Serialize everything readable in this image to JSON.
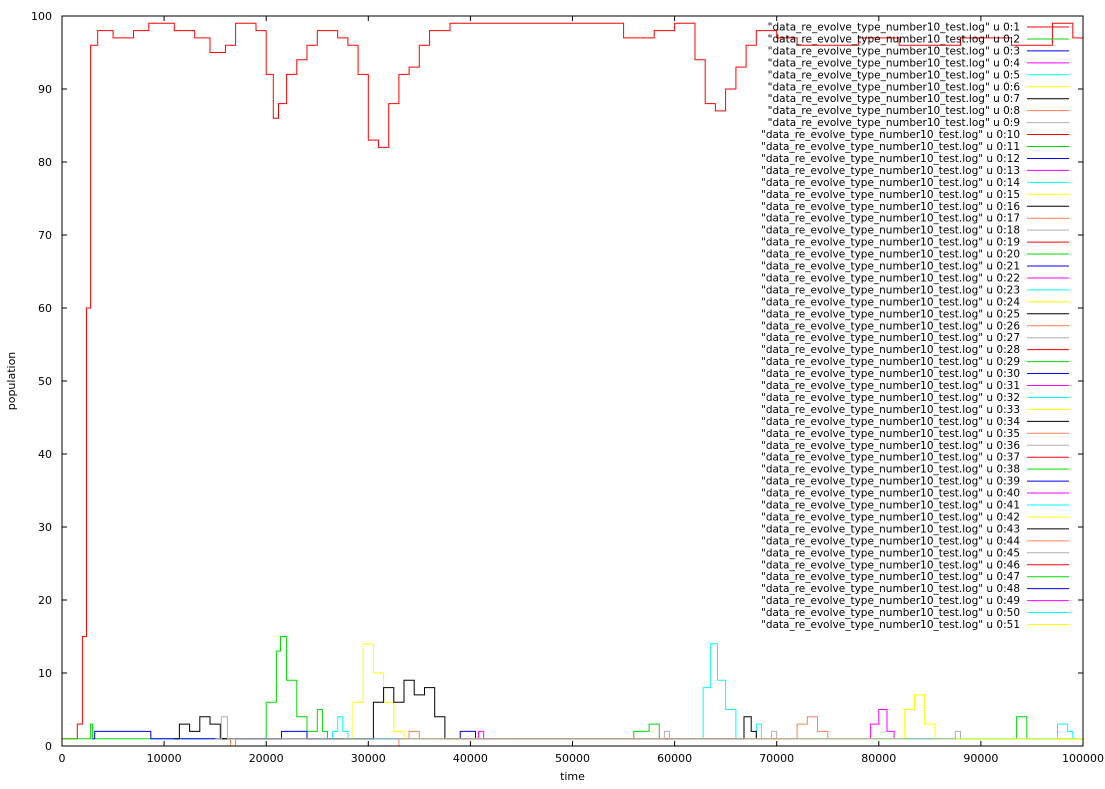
{
  "chart_data": {
    "type": "line",
    "xlabel": "time",
    "ylabel": "population",
    "xlim": [
      0,
      100000
    ],
    "ylim": [
      0,
      100
    ],
    "x_ticks": [
      0,
      10000,
      20000,
      30000,
      40000,
      50000,
      60000,
      70000,
      80000,
      90000,
      100000
    ],
    "y_ticks": [
      0,
      10,
      20,
      30,
      40,
      50,
      60,
      70,
      80,
      90,
      100
    ],
    "grid": false,
    "legend_position": "top-right",
    "series": [
      {
        "name": "\"data_re_evolve_type_number10_test.log\" u 0:1",
        "color": "#ff0000",
        "points": [
          [
            0,
            1
          ],
          [
            800,
            1
          ],
          [
            1500,
            3
          ],
          [
            2000,
            15
          ],
          [
            2400,
            60
          ],
          [
            2800,
            96
          ],
          [
            3500,
            98
          ],
          [
            5000,
            97
          ],
          [
            7000,
            98
          ],
          [
            8500,
            99
          ],
          [
            11000,
            98
          ],
          [
            13000,
            97
          ],
          [
            14500,
            95
          ],
          [
            16000,
            96
          ],
          [
            17000,
            99
          ],
          [
            19000,
            98
          ],
          [
            20000,
            92
          ],
          [
            20700,
            86
          ],
          [
            21200,
            88
          ],
          [
            22000,
            92
          ],
          [
            23000,
            94
          ],
          [
            24000,
            96
          ],
          [
            25000,
            98
          ],
          [
            27000,
            97
          ],
          [
            28000,
            96
          ],
          [
            29000,
            92
          ],
          [
            30000,
            83
          ],
          [
            31000,
            82
          ],
          [
            32000,
            88
          ],
          [
            33000,
            92
          ],
          [
            34000,
            93
          ],
          [
            35000,
            96
          ],
          [
            36000,
            98
          ],
          [
            38000,
            99
          ],
          [
            44000,
            99
          ],
          [
            52000,
            99
          ],
          [
            55000,
            97
          ],
          [
            58000,
            98
          ],
          [
            60000,
            99
          ],
          [
            62000,
            94
          ],
          [
            63000,
            88
          ],
          [
            64000,
            87
          ],
          [
            65000,
            90
          ],
          [
            66000,
            93
          ],
          [
            67000,
            96
          ],
          [
            68000,
            98
          ],
          [
            70000,
            97
          ],
          [
            72000,
            96
          ],
          [
            75000,
            96
          ],
          [
            78000,
            97
          ],
          [
            82000,
            96
          ],
          [
            85000,
            96
          ],
          [
            88000,
            97
          ],
          [
            93000,
            96
          ],
          [
            97000,
            99
          ],
          [
            99000,
            97
          ],
          [
            100000,
            96
          ]
        ]
      },
      {
        "name": "\"data_re_evolve_type_number10_test.log\" u 0:2",
        "color": "#00dd00",
        "points": [
          [
            0,
            1
          ],
          [
            2600,
            1
          ],
          [
            2800,
            3
          ],
          [
            3000,
            1
          ],
          [
            19000,
            1
          ],
          [
            20000,
            6
          ],
          [
            21000,
            13
          ],
          [
            21400,
            15
          ],
          [
            22000,
            9
          ],
          [
            23000,
            4
          ],
          [
            24000,
            2
          ],
          [
            25000,
            5
          ],
          [
            25500,
            2
          ],
          [
            26000,
            1
          ],
          [
            55000,
            1
          ],
          [
            56000,
            2
          ],
          [
            57500,
            3
          ],
          [
            58500,
            1
          ],
          [
            92000,
            1
          ],
          [
            93500,
            4
          ],
          [
            94500,
            1
          ],
          [
            100000,
            1
          ]
        ]
      },
      {
        "name": "\"data_re_evolve_type_number10_test.log\" u 0:3",
        "color": "#0000ff",
        "points": [
          [
            3000,
            1
          ],
          [
            3200,
            2
          ],
          [
            8500,
            2
          ],
          [
            8700,
            1
          ],
          [
            21000,
            1
          ],
          [
            21500,
            2
          ],
          [
            23500,
            2
          ],
          [
            24000,
            1
          ],
          [
            38500,
            1
          ],
          [
            39000,
            2
          ],
          [
            40000,
            2
          ],
          [
            40500,
            1
          ]
        ]
      },
      {
        "name": "\"data_re_evolve_type_number10_test.log\" u 0:4",
        "color": "#ff00ff",
        "points": [
          [
            40000,
            1
          ],
          [
            40800,
            2
          ],
          [
            41300,
            1
          ],
          [
            78000,
            1
          ],
          [
            79200,
            3
          ],
          [
            80000,
            5
          ],
          [
            80800,
            2
          ],
          [
            81500,
            1
          ]
        ]
      },
      {
        "name": "\"data_re_evolve_type_number10_test.log\" u 0:5",
        "color": "#00ffff",
        "points": [
          [
            25000,
            1
          ],
          [
            26500,
            2
          ],
          [
            27000,
            4
          ],
          [
            27500,
            2
          ],
          [
            28000,
            1
          ],
          [
            62000,
            1
          ],
          [
            62800,
            8
          ],
          [
            63500,
            14
          ],
          [
            64200,
            9
          ],
          [
            65000,
            5
          ],
          [
            66000,
            1
          ],
          [
            67500,
            1
          ],
          [
            68000,
            3
          ],
          [
            68500,
            1
          ],
          [
            96500,
            1
          ],
          [
            97500,
            3
          ],
          [
            98500,
            2
          ],
          [
            99000,
            1
          ]
        ]
      },
      {
        "name": "\"data_re_evolve_type_number10_test.log\" u 0:6",
        "color": "#ffff00",
        "points": [
          [
            27500,
            1
          ],
          [
            28500,
            6
          ],
          [
            29500,
            14
          ],
          [
            30500,
            10
          ],
          [
            31500,
            6
          ],
          [
            32500,
            2
          ],
          [
            33500,
            1
          ],
          [
            81500,
            1
          ],
          [
            82500,
            5
          ],
          [
            83500,
            7
          ],
          [
            84500,
            3
          ],
          [
            85500,
            1
          ],
          [
            99000,
            1
          ],
          [
            100000,
            3
          ]
        ]
      },
      {
        "name": "\"data_re_evolve_type_number10_test.log\" u 0:7",
        "color": "#000000",
        "points": [
          [
            11000,
            1
          ],
          [
            11500,
            3
          ],
          [
            12500,
            2
          ],
          [
            13500,
            4
          ],
          [
            14500,
            3
          ],
          [
            15500,
            1
          ],
          [
            29500,
            1
          ],
          [
            30500,
            6
          ],
          [
            31500,
            8
          ],
          [
            32500,
            6
          ],
          [
            33500,
            9
          ],
          [
            34500,
            7
          ],
          [
            35500,
            8
          ],
          [
            36500,
            4
          ],
          [
            37500,
            1
          ],
          [
            66000,
            1
          ],
          [
            66800,
            4
          ],
          [
            67500,
            2
          ],
          [
            68000,
            1
          ]
        ]
      },
      {
        "name": "\"data_re_evolve_type_number10_test.log\" u 0:8",
        "color": "#ff7f50",
        "points": [
          [
            16000,
            0
          ],
          [
            16500,
            1
          ],
          [
            17000,
            0
          ],
          [
            33000,
            1
          ],
          [
            34000,
            2
          ],
          [
            35000,
            1
          ],
          [
            71000,
            1
          ],
          [
            72000,
            3
          ],
          [
            73000,
            4
          ],
          [
            74000,
            2
          ],
          [
            75000,
            1
          ]
        ]
      },
      {
        "name": "\"data_re_evolve_type_number10_test.log\" u 0:9",
        "color": "#b0b0b0",
        "points": [
          [
            15000,
            1
          ],
          [
            15600,
            4
          ],
          [
            16200,
            1
          ],
          [
            58000,
            1
          ],
          [
            59000,
            2
          ],
          [
            59500,
            1
          ],
          [
            68500,
            1
          ],
          [
            69500,
            2
          ],
          [
            70000,
            1
          ],
          [
            86500,
            1
          ],
          [
            87500,
            2
          ],
          [
            88000,
            1
          ]
        ]
      },
      {
        "name": "\"data_re_evolve_type_number10_test.log\" u 0:10",
        "color": "#ff0000",
        "points": []
      },
      {
        "name": "\"data_re_evolve_type_number10_test.log\" u 0:11",
        "color": "#00dd00",
        "points": []
      },
      {
        "name": "\"data_re_evolve_type_number10_test.log\" u 0:12",
        "color": "#0000ff",
        "points": []
      },
      {
        "name": "\"data_re_evolve_type_number10_test.log\" u 0:13",
        "color": "#ff00ff",
        "points": []
      },
      {
        "name": "\"data_re_evolve_type_number10_test.log\" u 0:14",
        "color": "#00ffff",
        "points": []
      },
      {
        "name": "\"data_re_evolve_type_number10_test.log\" u 0:15",
        "color": "#ffff00",
        "points": []
      },
      {
        "name": "\"data_re_evolve_type_number10_test.log\" u 0:16",
        "color": "#000000",
        "points": []
      },
      {
        "name": "\"data_re_evolve_type_number10_test.log\" u 0:17",
        "color": "#ff7f50",
        "points": []
      },
      {
        "name": "\"data_re_evolve_type_number10_test.log\" u 0:18",
        "color": "#b0b0b0",
        "points": []
      },
      {
        "name": "\"data_re_evolve_type_number10_test.log\" u 0:19",
        "color": "#ff0000",
        "points": []
      },
      {
        "name": "\"data_re_evolve_type_number10_test.log\" u 0:20",
        "color": "#00dd00",
        "points": []
      },
      {
        "name": "\"data_re_evolve_type_number10_test.log\" u 0:21",
        "color": "#0000ff",
        "points": []
      },
      {
        "name": "\"data_re_evolve_type_number10_test.log\" u 0:22",
        "color": "#ff00ff",
        "points": []
      },
      {
        "name": "\"data_re_evolve_type_number10_test.log\" u 0:23",
        "color": "#00ffff",
        "points": []
      },
      {
        "name": "\"data_re_evolve_type_number10_test.log\" u 0:24",
        "color": "#ffff00",
        "points": []
      },
      {
        "name": "\"data_re_evolve_type_number10_test.log\" u 0:25",
        "color": "#000000",
        "points": []
      },
      {
        "name": "\"data_re_evolve_type_number10_test.log\" u 0:26",
        "color": "#ff7f50",
        "points": []
      },
      {
        "name": "\"data_re_evolve_type_number10_test.log\" u 0:27",
        "color": "#b0b0b0",
        "points": []
      },
      {
        "name": "\"data_re_evolve_type_number10_test.log\" u 0:28",
        "color": "#ff0000",
        "points": []
      },
      {
        "name": "\"data_re_evolve_type_number10_test.log\" u 0:29",
        "color": "#00dd00",
        "points": []
      },
      {
        "name": "\"data_re_evolve_type_number10_test.log\" u 0:30",
        "color": "#0000ff",
        "points": []
      },
      {
        "name": "\"data_re_evolve_type_number10_test.log\" u 0:31",
        "color": "#ff00ff",
        "points": []
      },
      {
        "name": "\"data_re_evolve_type_number10_test.log\" u 0:32",
        "color": "#00ffff",
        "points": []
      },
      {
        "name": "\"data_re_evolve_type_number10_test.log\" u 0:33",
        "color": "#ffff00",
        "points": []
      },
      {
        "name": "\"data_re_evolve_type_number10_test.log\" u 0:34",
        "color": "#000000",
        "points": []
      },
      {
        "name": "\"data_re_evolve_type_number10_test.log\" u 0:35",
        "color": "#ff7f50",
        "points": []
      },
      {
        "name": "\"data_re_evolve_type_number10_test.log\" u 0:36",
        "color": "#b0b0b0",
        "points": []
      },
      {
        "name": "\"data_re_evolve_type_number10_test.log\" u 0:37",
        "color": "#ff0000",
        "points": []
      },
      {
        "name": "\"data_re_evolve_type_number10_test.log\" u 0:38",
        "color": "#00dd00",
        "points": []
      },
      {
        "name": "\"data_re_evolve_type_number10_test.log\" u 0:39",
        "color": "#0000ff",
        "points": []
      },
      {
        "name": "\"data_re_evolve_type_number10_test.log\" u 0:40",
        "color": "#ff00ff",
        "points": []
      },
      {
        "name": "\"data_re_evolve_type_number10_test.log\" u 0:41",
        "color": "#00ffff",
        "points": []
      },
      {
        "name": "\"data_re_evolve_type_number10_test.log\" u 0:42",
        "color": "#ffff00",
        "points": []
      },
      {
        "name": "\"data_re_evolve_type_number10_test.log\" u 0:43",
        "color": "#000000",
        "points": []
      },
      {
        "name": "\"data_re_evolve_type_number10_test.log\" u 0:44",
        "color": "#ff7f50",
        "points": []
      },
      {
        "name": "\"data_re_evolve_type_number10_test.log\" u 0:45",
        "color": "#b0b0b0",
        "points": []
      },
      {
        "name": "\"data_re_evolve_type_number10_test.log\" u 0:46",
        "color": "#ff0000",
        "points": []
      },
      {
        "name": "\"data_re_evolve_type_number10_test.log\" u 0:47",
        "color": "#00dd00",
        "points": []
      },
      {
        "name": "\"data_re_evolve_type_number10_test.log\" u 0:48",
        "color": "#0000ff",
        "points": []
      },
      {
        "name": "\"data_re_evolve_type_number10_test.log\" u 0:49",
        "color": "#ff00ff",
        "points": []
      },
      {
        "name": "\"data_re_evolve_type_number10_test.log\" u 0:50",
        "color": "#00ffff",
        "points": []
      },
      {
        "name": "\"data_re_evolve_type_number10_test.log\" u 0:51",
        "color": "#ffff00",
        "points": []
      }
    ]
  }
}
